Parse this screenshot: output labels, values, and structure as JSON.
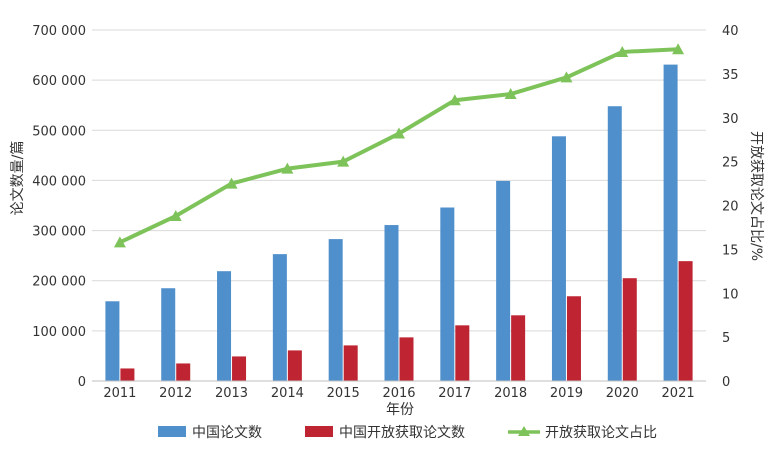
{
  "chart_data": {
    "type": "bar",
    "categories": [
      "2011",
      "2012",
      "2013",
      "2014",
      "2015",
      "2016",
      "2017",
      "2018",
      "2019",
      "2020",
      "2021"
    ],
    "series": [
      {
        "name": "中国论文数",
        "type": "bar",
        "axis": "left",
        "color": "#4f8fcc",
        "values": [
          159000,
          185000,
          219000,
          253000,
          283000,
          311000,
          346000,
          399000,
          488000,
          548000,
          631000
        ]
      },
      {
        "name": "中国开放获取论文数",
        "type": "bar",
        "axis": "left",
        "color": "#be2431",
        "values": [
          25000,
          35000,
          49000,
          61000,
          71000,
          87000,
          111000,
          131000,
          169000,
          205000,
          239000
        ]
      },
      {
        "name": "开放获取论文占比",
        "type": "line",
        "axis": "right",
        "color": "#7dc35a",
        "marker": "triangle",
        "values": [
          15.8,
          18.8,
          22.5,
          24.2,
          25.0,
          28.2,
          32.0,
          32.7,
          34.6,
          37.5,
          37.8
        ]
      }
    ],
    "xlabel": "年份",
    "ylabel": "论文数量/篇",
    "y2label": "开放获取论文占比/%",
    "ylim": [
      0,
      700000
    ],
    "y2lim": [
      0,
      40
    ],
    "yticks": [
      "0",
      "100 000",
      "200 000",
      "300 000",
      "400 000",
      "500 000",
      "600 000",
      "700 000"
    ],
    "y2ticks": [
      "0",
      "5",
      "10",
      "15",
      "20",
      "25",
      "30",
      "35",
      "40"
    ],
    "grid": true,
    "legend": "bottom"
  }
}
